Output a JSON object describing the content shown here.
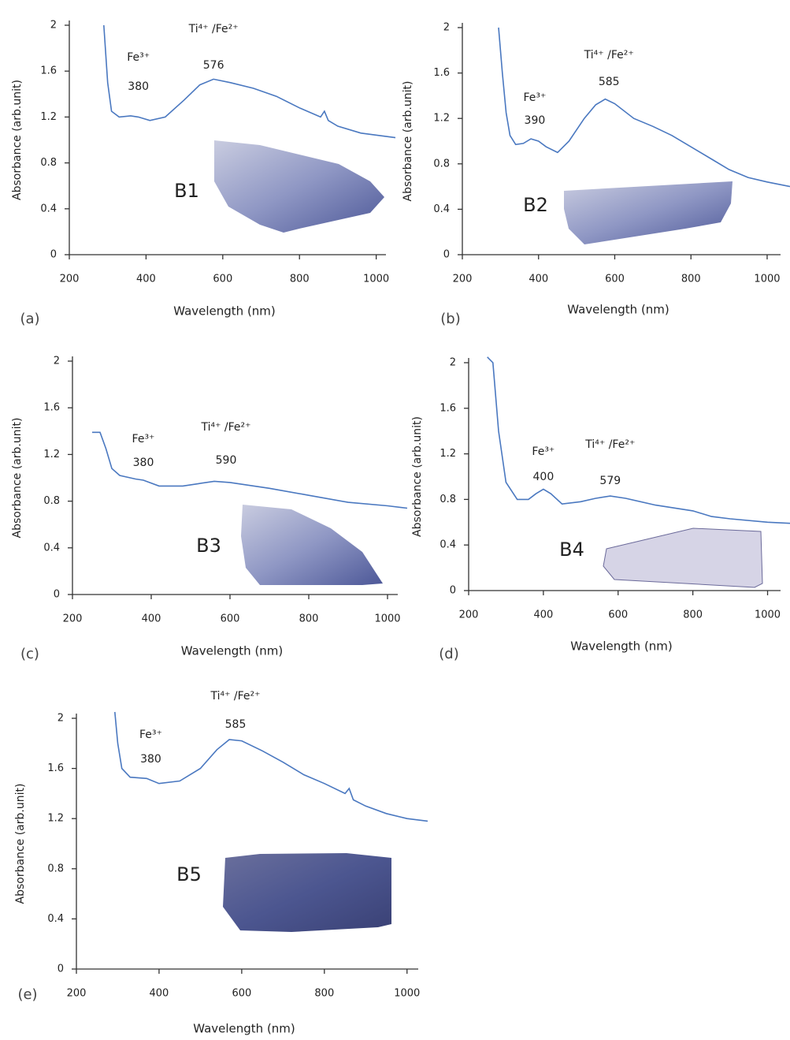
{
  "chart_data": [
    {
      "type": "line",
      "panel_label": "(a)",
      "sample_label": "B1",
      "x_label": "Wavelength (nm)",
      "y_label": "Absorbance (arb.unit)",
      "color": "#4a78c0",
      "xlim": [
        200,
        1050
      ],
      "ylim": [
        0,
        2
      ],
      "xticks": [
        200,
        400,
        600,
        800,
        1000
      ],
      "yticks": [
        0,
        0.4,
        0.8,
        1.2,
        1.6,
        2
      ],
      "x": [
        290,
        300,
        310,
        330,
        360,
        380,
        410,
        450,
        500,
        540,
        576,
        620,
        680,
        740,
        800,
        855,
        865,
        875,
        900,
        960,
        1050
      ],
      "values": [
        2.0,
        1.5,
        1.25,
        1.2,
        1.21,
        1.2,
        1.17,
        1.2,
        1.35,
        1.48,
        1.53,
        1.5,
        1.45,
        1.38,
        1.28,
        1.2,
        1.25,
        1.17,
        1.12,
        1.06,
        1.02
      ],
      "annotations": [
        {
          "label": "Fe³⁺",
          "value": 380
        },
        {
          "label": "Ti⁴⁺ /Fe²⁺",
          "value": 576
        }
      ]
    },
    {
      "type": "line",
      "panel_label": "(b)",
      "sample_label": "B2",
      "x_label": "Wavelength (nm)",
      "y_label": "Absorbance (arb.unit)",
      "color": "#4a78c0",
      "xlim": [
        200,
        1060
      ],
      "ylim": [
        0,
        2
      ],
      "xticks": [
        200,
        400,
        600,
        800,
        1000
      ],
      "yticks": [
        0,
        0.4,
        0.8,
        1.2,
        1.6,
        2
      ],
      "x": [
        295,
        305,
        315,
        325,
        340,
        360,
        380,
        400,
        420,
        450,
        480,
        520,
        550,
        575,
        600,
        650,
        700,
        750,
        800,
        860,
        900,
        950,
        1000,
        1060
      ],
      "values": [
        2.0,
        1.6,
        1.25,
        1.05,
        0.97,
        0.98,
        1.02,
        1.0,
        0.95,
        0.9,
        1.0,
        1.2,
        1.32,
        1.37,
        1.33,
        1.2,
        1.13,
        1.05,
        0.95,
        0.83,
        0.75,
        0.68,
        0.64,
        0.6
      ],
      "annotations": [
        {
          "label": "Fe³⁺",
          "value": 390
        },
        {
          "label": "Ti⁴⁺ /Fe²⁺",
          "value": 585
        }
      ]
    },
    {
      "type": "line",
      "panel_label": "(c)",
      "sample_label": "B3",
      "x_label": "Wavelength (nm)",
      "y_label": "Absorbance (arb.unit)",
      "color": "#4a78c0",
      "xlim": [
        200,
        1050
      ],
      "ylim": [
        0,
        2
      ],
      "xticks": [
        200,
        400,
        600,
        800,
        1000
      ],
      "yticks": [
        0,
        0.4,
        0.8,
        1.2,
        1.6,
        2
      ],
      "x": [
        250,
        270,
        285,
        300,
        320,
        360,
        380,
        420,
        480,
        520,
        560,
        600,
        700,
        800,
        900,
        1000,
        1050
      ],
      "values": [
        1.39,
        1.39,
        1.25,
        1.08,
        1.02,
        0.99,
        0.98,
        0.93,
        0.93,
        0.95,
        0.97,
        0.96,
        0.91,
        0.85,
        0.79,
        0.76,
        0.74
      ],
      "annotations": [
        {
          "label": "Fe³⁺",
          "value": 380
        },
        {
          "label": "Ti⁴⁺ /Fe²⁺",
          "value": 590
        }
      ]
    },
    {
      "type": "line",
      "panel_label": "(d)",
      "sample_label": "B4",
      "x_label": "Wavelength (nm)",
      "y_label": "Absorbance (arb.unit)",
      "color": "#4a78c0",
      "xlim": [
        200,
        1060
      ],
      "ylim": [
        0,
        2
      ],
      "xticks": [
        200,
        400,
        600,
        800,
        1000
      ],
      "yticks": [
        0,
        0.4,
        0.8,
        1.2,
        1.6,
        2
      ],
      "x": [
        250,
        265,
        280,
        300,
        330,
        360,
        380,
        400,
        420,
        450,
        500,
        540,
        579,
        620,
        700,
        800,
        850,
        900,
        1000,
        1060
      ],
      "values": [
        2.05,
        2.0,
        1.4,
        0.95,
        0.8,
        0.8,
        0.85,
        0.89,
        0.85,
        0.76,
        0.78,
        0.81,
        0.83,
        0.81,
        0.75,
        0.7,
        0.65,
        0.63,
        0.6,
        0.59
      ],
      "annotations": [
        {
          "label": "Fe³⁺",
          "value": 400
        },
        {
          "label": "Ti⁴⁺ /Fe²⁺",
          "value": 579
        }
      ]
    },
    {
      "type": "line",
      "panel_label": "(e)",
      "sample_label": "B5",
      "x_label": "Wavelength (nm)",
      "y_label": "Absorbance (arb.unit)",
      "color": "#4a78c0",
      "xlim": [
        200,
        1050
      ],
      "ylim": [
        0,
        2
      ],
      "xticks": [
        200,
        400,
        600,
        800,
        1000
      ],
      "yticks": [
        0,
        0.4,
        0.8,
        1.2,
        1.6,
        2
      ],
      "x": [
        293,
        300,
        310,
        330,
        370,
        400,
        450,
        500,
        540,
        570,
        600,
        650,
        700,
        750,
        800,
        850,
        860,
        870,
        900,
        950,
        1000,
        1050
      ],
      "values": [
        2.05,
        1.8,
        1.6,
        1.53,
        1.52,
        1.48,
        1.5,
        1.6,
        1.75,
        1.83,
        1.82,
        1.74,
        1.65,
        1.55,
        1.48,
        1.4,
        1.44,
        1.35,
        1.3,
        1.24,
        1.2,
        1.18
      ],
      "annotations": [
        {
          "label": "Fe³⁺",
          "value": 380
        },
        {
          "label": "Ti⁴⁺ /Fe²⁺",
          "value": 585
        }
      ]
    }
  ]
}
